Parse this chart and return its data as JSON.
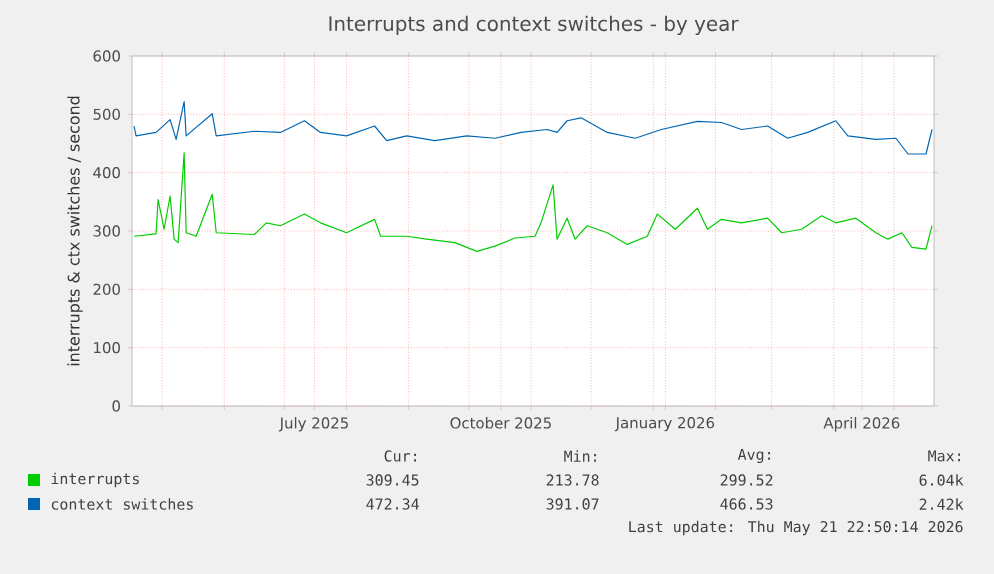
{
  "chart_data": {
    "type": "line",
    "title": "Interrupts and context switches - by year",
    "ylabel": "interrupts & ctx switches / second",
    "xlim": [
      "2025-04-16",
      "2026-05-21"
    ],
    "ylim": [
      0,
      600
    ],
    "yticks": [
      0,
      100,
      200,
      300,
      400,
      500,
      600
    ],
    "xticks": [
      {
        "value": "2025-05-01",
        "label": null
      },
      {
        "value": "2025-06-01",
        "label": null
      },
      {
        "value": "2025-07-01",
        "label": null
      },
      {
        "value": "2025-07-16",
        "label": "July 2025"
      },
      {
        "value": "2025-08-01",
        "label": null
      },
      {
        "value": "2025-09-01",
        "label": null
      },
      {
        "value": "2025-10-01",
        "label": null
      },
      {
        "value": "2025-10-17",
        "label": "October 2025"
      },
      {
        "value": "2025-11-01",
        "label": null
      },
      {
        "value": "2025-12-01",
        "label": null
      },
      {
        "value": "2026-01-01",
        "label": null
      },
      {
        "value": "2026-01-07",
        "label": "January 2026"
      },
      {
        "value": "2026-02-01",
        "label": null
      },
      {
        "value": "2026-03-01",
        "label": null
      },
      {
        "value": "2026-04-01",
        "label": null
      },
      {
        "value": "2026-04-15",
        "label": "April 2026"
      },
      {
        "value": "2026-05-01",
        "label": null
      }
    ],
    "grid": true,
    "legend": "bottom",
    "series": [
      {
        "name": "interrupts",
        "color": "#00cc00",
        "x": [
          "2025-04-17",
          "2025-04-28",
          "2025-04-29",
          "2025-05-02",
          "2025-05-05",
          "2025-05-07",
          "2025-05-09",
          "2025-05-12",
          "2025-05-13",
          "2025-05-18",
          "2025-05-26",
          "2025-05-28",
          "2025-06-16",
          "2025-06-22",
          "2025-06-29",
          "2025-07-11",
          "2025-07-19",
          "2025-08-01",
          "2025-08-15",
          "2025-08-18",
          "2025-08-31",
          "2025-09-10",
          "2025-09-24",
          "2025-10-05",
          "2025-10-14",
          "2025-10-24",
          "2025-11-03",
          "2025-11-06",
          "2025-11-12",
          "2025-11-14",
          "2025-11-19",
          "2025-11-23",
          "2025-11-29",
          "2025-12-09",
          "2025-12-19",
          "2025-12-29",
          "2026-01-03",
          "2026-01-12",
          "2026-01-23",
          "2026-01-28",
          "2026-02-04",
          "2026-02-14",
          "2026-02-27",
          "2026-03-06",
          "2026-03-16",
          "2026-03-26",
          "2026-04-02",
          "2026-04-12",
          "2026-04-22",
          "2026-04-28",
          "2026-05-05",
          "2026-05-10",
          "2026-05-17",
          "2026-05-20"
        ],
        "values": [
          291,
          295,
          354,
          303,
          360,
          286,
          280,
          434,
          297,
          291,
          363,
          297,
          294,
          314,
          309,
          329,
          314,
          297,
          320,
          291,
          291,
          286,
          280,
          265,
          274,
          288,
          291,
          314,
          379,
          286,
          322,
          286,
          309,
          297,
          277,
          291,
          329,
          303,
          339,
          303,
          320,
          314,
          322,
          297,
          303,
          326,
          314,
          322,
          297,
          286,
          297,
          272,
          269,
          309
        ]
      },
      {
        "name": "context switches",
        "color": "#0066b3",
        "x": [
          "2025-04-17",
          "2025-04-18",
          "2025-04-28",
          "2025-05-05",
          "2025-05-08",
          "2025-05-12",
          "2025-05-13",
          "2025-05-26",
          "2025-05-28",
          "2025-06-16",
          "2025-06-29",
          "2025-07-11",
          "2025-07-19",
          "2025-08-01",
          "2025-08-15",
          "2025-08-21",
          "2025-08-31",
          "2025-09-14",
          "2025-09-30",
          "2025-10-14",
          "2025-10-27",
          "2025-11-09",
          "2025-11-14",
          "2025-11-19",
          "2025-11-26",
          "2025-12-09",
          "2025-12-23",
          "2026-01-05",
          "2026-01-23",
          "2026-02-04",
          "2026-02-14",
          "2026-02-27",
          "2026-03-09",
          "2026-03-19",
          "2026-04-02",
          "2026-04-08",
          "2026-04-22",
          "2026-05-02",
          "2026-05-08",
          "2026-05-17",
          "2026-05-20"
        ],
        "values": [
          480,
          463,
          469,
          491,
          457,
          522,
          463,
          501,
          463,
          471,
          469,
          489,
          469,
          463,
          480,
          455,
          463,
          455,
          463,
          459,
          469,
          474,
          469,
          489,
          494,
          469,
          459,
          474,
          488,
          486,
          474,
          480,
          459,
          469,
          489,
          463,
          457,
          459,
          432,
          432,
          474
        ]
      }
    ],
    "annotations": [
      "Cur:",
      "Min:",
      "Avg:",
      "Max:",
      "309.45",
      "213.78",
      "299.52",
      "6.04k",
      "472.34",
      "391.07",
      "466.53",
      "2.42k",
      "Last update: Thu May 21 22:50:14 2026"
    ]
  }
}
